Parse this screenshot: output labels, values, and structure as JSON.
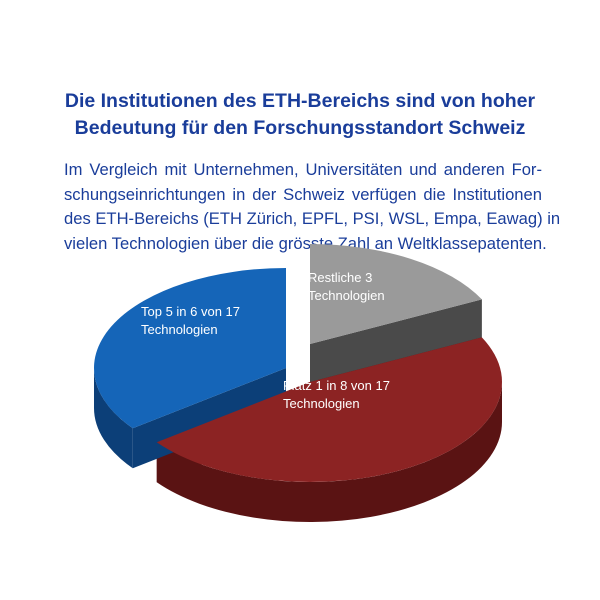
{
  "title": {
    "line1": "Die Institutionen des ETH-Bereichs sind von hoher",
    "line2": "Bedeutung für den Forschungsstandort Schweiz"
  },
  "description": {
    "lines": [
      "Im Vergleich mit Unternehmen, Universitäten und anderen For-",
      "schungseinrichtungen in der Schweiz verfügen die Institutionen",
      "des ETH-Bereichs (ETH Zürich, EPFL, PSI, WSL, Empa, Eawag) in",
      "vielen Technologien über die grösste Zahl an Weltklassepatenten."
    ]
  },
  "chart_data": {
    "type": "pie",
    "total": 17,
    "slices": [
      {
        "label_line1": "Restliche 3",
        "label_line2": "Technologien",
        "value": 3,
        "color": "#9a9a9a",
        "side_color": "#4a4a4a"
      },
      {
        "label_line1": "Platz 1 in 8 von 17",
        "label_line2": "Technologien",
        "value": 8,
        "color": "#8c2323",
        "side_color": "#5a1313"
      },
      {
        "label_line1": "Top 5 in 6 von 17",
        "label_line2": "Technologien",
        "value": 6,
        "color": "#1565b8",
        "side_color": "#0c3f78"
      }
    ]
  }
}
